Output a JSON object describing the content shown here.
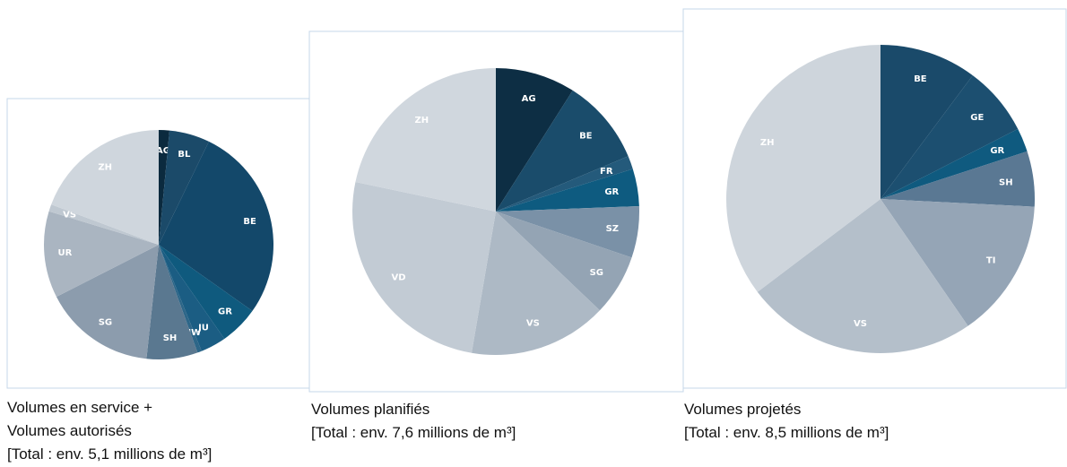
{
  "chart_data": [
    {
      "type": "pie",
      "categories": [
        "AG",
        "BL",
        "BE",
        "GR",
        "JU",
        "NW",
        "SH",
        "SG",
        "UR",
        "VS",
        "ZH"
      ],
      "values": [
        1.5,
        5.7,
        27.6,
        5.5,
        3.6,
        0.6,
        7.2,
        15.8,
        12.2,
        1.0,
        19.3
      ],
      "colors": [
        "#0b2a3e",
        "#1b4a69",
        "#13486a",
        "#0f5a7e",
        "#1b5d83",
        "#2d6688",
        "#5a7890",
        "#8c9cad",
        "#aab5c1",
        "#bfc8d1",
        "#cfd6dd"
      ],
      "caption": [
        "Volumes en service +",
        "Volumes autorisés",
        "[Total : env. 5,1 millions de m³]"
      ]
    },
    {
      "type": "pie",
      "categories": [
        "AG",
        "BE",
        "FR",
        "GR",
        "SZ",
        "SG",
        "VS",
        "VD",
        "ZH"
      ],
      "values": [
        9.0,
        9.7,
        1.5,
        4.2,
        5.8,
        6.9,
        15.6,
        25.6,
        21.7
      ],
      "colors": [
        "#0d2e44",
        "#1a4c6b",
        "#245a7b",
        "#0e5b80",
        "#7a91a7",
        "#94a4b4",
        "#adb9c5",
        "#c2cbd4",
        "#d0d7de"
      ],
      "caption": [
        "Volumes planifiés",
        "[Total : env. 7,6 millions de m³]"
      ]
    },
    {
      "type": "pie",
      "categories": [
        "BE",
        "GE",
        "GR",
        "SH",
        "TI",
        "VS",
        "ZH"
      ],
      "values": [
        10.2,
        7.3,
        2.5,
        5.8,
        14.6,
        24.3,
        35.3
      ],
      "colors": [
        "#1a4a6a",
        "#1c4f70",
        "#0f5a7f",
        "#5a7893",
        "#95a5b6",
        "#b4bfca",
        "#ced5dc"
      ],
      "caption": [
        "Volumes projetés",
        "[Total : env. 8,5 millions de m³]"
      ]
    }
  ]
}
